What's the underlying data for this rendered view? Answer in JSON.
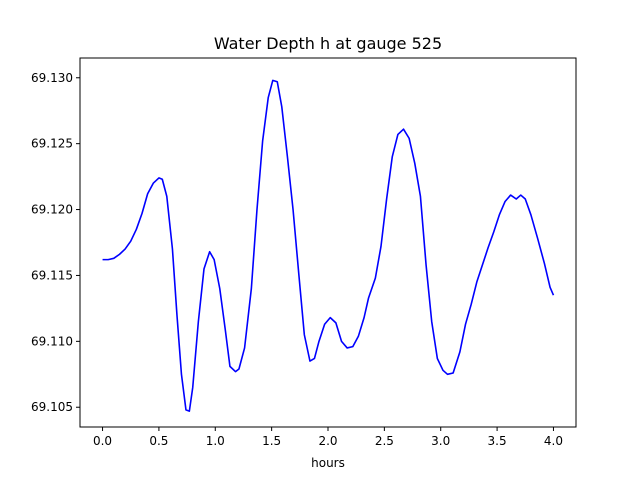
{
  "chart_data": {
    "type": "line",
    "title": "Water Depth h at gauge 525",
    "xlabel": "hours",
    "ylabel": "",
    "xlim": [
      -0.2,
      4.2
    ],
    "ylim": [
      69.1035,
      69.1315
    ],
    "xticks": [
      0.0,
      0.5,
      1.0,
      1.5,
      2.0,
      2.5,
      3.0,
      3.5,
      4.0
    ],
    "xtick_labels": [
      "0.0",
      "0.5",
      "1.0",
      "1.5",
      "2.0",
      "2.5",
      "3.0",
      "3.5",
      "4.0"
    ],
    "yticks": [
      69.105,
      69.11,
      69.115,
      69.12,
      69.125,
      69.13
    ],
    "ytick_labels": [
      "69.105",
      "69.110",
      "69.115",
      "69.120",
      "69.125",
      "69.130"
    ],
    "grid": false,
    "series": [
      {
        "color": "#0000ff",
        "points": [
          [
            0.0,
            69.1162
          ],
          [
            0.05,
            69.1162
          ],
          [
            0.1,
            69.1163
          ],
          [
            0.15,
            69.1166
          ],
          [
            0.2,
            69.117
          ],
          [
            0.25,
            69.1176
          ],
          [
            0.3,
            69.1185
          ],
          [
            0.35,
            69.1197
          ],
          [
            0.4,
            69.1212
          ],
          [
            0.45,
            69.122
          ],
          [
            0.5,
            69.1224
          ],
          [
            0.53,
            69.1223
          ],
          [
            0.57,
            69.121
          ],
          [
            0.62,
            69.117
          ],
          [
            0.66,
            69.112
          ],
          [
            0.7,
            69.1075
          ],
          [
            0.74,
            69.1048
          ],
          [
            0.77,
            69.1047
          ],
          [
            0.8,
            69.1065
          ],
          [
            0.85,
            69.1115
          ],
          [
            0.9,
            69.1155
          ],
          [
            0.95,
            69.1168
          ],
          [
            0.99,
            69.1162
          ],
          [
            1.04,
            69.114
          ],
          [
            1.09,
            69.1108
          ],
          [
            1.13,
            69.1081
          ],
          [
            1.18,
            69.1077
          ],
          [
            1.21,
            69.1079
          ],
          [
            1.26,
            69.1095
          ],
          [
            1.32,
            69.114
          ],
          [
            1.37,
            69.12
          ],
          [
            1.42,
            69.1252
          ],
          [
            1.47,
            69.1285
          ],
          [
            1.51,
            69.1298
          ],
          [
            1.55,
            69.1297
          ],
          [
            1.59,
            69.1278
          ],
          [
            1.64,
            69.124
          ],
          [
            1.69,
            69.12
          ],
          [
            1.74,
            69.1152
          ],
          [
            1.79,
            69.1105
          ],
          [
            1.84,
            69.1085
          ],
          [
            1.88,
            69.1087
          ],
          [
            1.92,
            69.11
          ],
          [
            1.97,
            69.1113
          ],
          [
            2.02,
            69.1118
          ],
          [
            2.07,
            69.1114
          ],
          [
            2.12,
            69.11
          ],
          [
            2.17,
            69.1095
          ],
          [
            2.22,
            69.1096
          ],
          [
            2.27,
            69.1104
          ],
          [
            2.32,
            69.1118
          ],
          [
            2.36,
            69.1133
          ],
          [
            2.42,
            69.1148
          ],
          [
            2.47,
            69.1172
          ],
          [
            2.52,
            69.1208
          ],
          [
            2.57,
            69.124
          ],
          [
            2.62,
            69.1257
          ],
          [
            2.67,
            69.1261
          ],
          [
            2.72,
            69.1254
          ],
          [
            2.77,
            69.1235
          ],
          [
            2.82,
            69.121
          ],
          [
            2.87,
            69.1158
          ],
          [
            2.92,
            69.1115
          ],
          [
            2.97,
            69.1087
          ],
          [
            3.02,
            69.1078
          ],
          [
            3.06,
            69.1075
          ],
          [
            3.11,
            69.1076
          ],
          [
            3.17,
            69.1092
          ],
          [
            3.22,
            69.1113
          ],
          [
            3.27,
            69.1128
          ],
          [
            3.32,
            69.1145
          ],
          [
            3.37,
            69.1158
          ],
          [
            3.42,
            69.1171
          ],
          [
            3.47,
            69.1183
          ],
          [
            3.52,
            69.1196
          ],
          [
            3.57,
            69.1206
          ],
          [
            3.62,
            69.1211
          ],
          [
            3.67,
            69.1208
          ],
          [
            3.71,
            69.1211
          ],
          [
            3.75,
            69.1208
          ],
          [
            3.8,
            69.1196
          ],
          [
            3.86,
            69.1178
          ],
          [
            3.92,
            69.1159
          ],
          [
            3.97,
            69.1141
          ],
          [
            4.0,
            69.1135
          ]
        ]
      }
    ]
  }
}
